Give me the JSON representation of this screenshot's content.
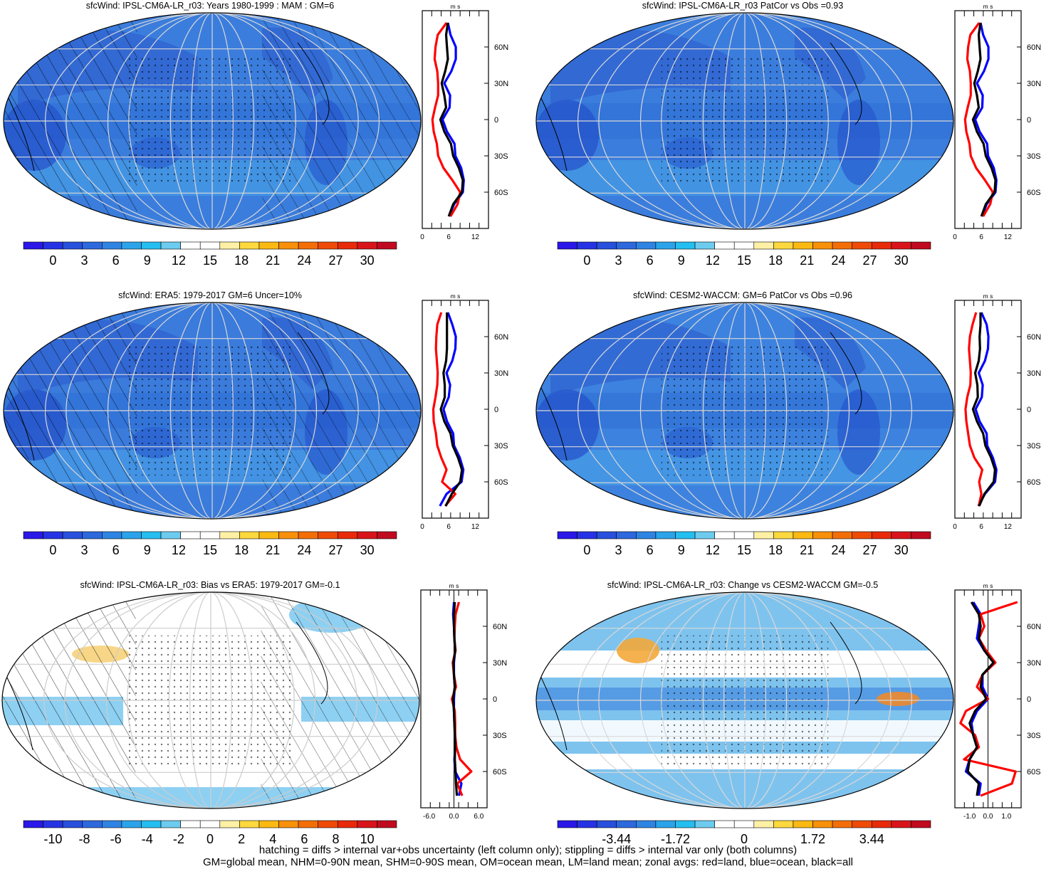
{
  "footer": {
    "line1": "hatching = diffs > internal var+obs uncertainty (left column only); stippling = diffs > internal var only (both columns)",
    "line2": "GM=global mean, NHM=0-90N mean, SHM=0-90S mean, OM=ocean mean, LM=land mean; zonal avgs: red=land, blue=ocean, black=all"
  },
  "colors": {
    "land": "#ff0000",
    "ocean": "#0000ff",
    "all": "#000000"
  },
  "chart_data": [
    {
      "type": "heatmap",
      "title": "sfcWind: IPSL-CM6A-LR_r03: Years 1980-1999 : MAM : GM=6",
      "colorbar_ticks": [
        "0",
        "3",
        "6",
        "9",
        "12",
        "15",
        "18",
        "21",
        "24",
        "27",
        "30"
      ],
      "colorbar_colors": [
        "#2a17e8",
        "#2633e4",
        "#2850dd",
        "#2d68dd",
        "#2f84e3",
        "#2ba3ea",
        "#24bef0",
        "#6dcbef",
        "#ffffff",
        "#ffffff",
        "#fef0a4",
        "#fdd83e",
        "#fcb912",
        "#f99009",
        "#f46e07",
        "#ef4b07",
        "#e82a0b",
        "#d8141a",
        "#c00a1f"
      ],
      "map_fill": "#3b7ddc",
      "hatched": true,
      "zonal": {
        "unit_label": "m s-1",
        "lat_ticks": [
          "60N",
          "30N",
          "0",
          "30S",
          "60S"
        ],
        "lat_values": [
          60,
          30,
          0,
          -30,
          -60
        ],
        "x_ticks": [
          "0",
          "6",
          "12"
        ],
        "xlim": [
          0,
          15
        ],
        "lat": [
          80,
          70,
          60,
          50,
          40,
          30,
          20,
          10,
          0,
          -10,
          -20,
          -30,
          -40,
          -50,
          -60,
          -70,
          -80
        ],
        "series": [
          {
            "name": "land",
            "values": [
              5.5,
              3.5,
              3,
              2.8,
              3.4,
              3.6,
              3.6,
              2.9,
              2.3,
              2.6,
              3.3,
              3.6,
              4.8,
              6.8,
              8.6,
              8,
              6.4
            ]
          },
          {
            "name": "ocean",
            "values": [
              5.8,
              6.4,
              7.6,
              7.6,
              6.6,
              5,
              6.3,
              6.2,
              4.6,
              5.6,
              7.3,
              7.5,
              8.8,
              9.4,
              9.2,
              7.2,
              6.1
            ]
          },
          {
            "name": "all",
            "values": [
              5.8,
              5.4,
              5.6,
              5.8,
              5.2,
              4.4,
              5,
              5.4,
              4.1,
              5,
              6.5,
              7,
              8.3,
              9.2,
              9,
              7,
              6
            ]
          }
        ]
      }
    },
    {
      "type": "heatmap",
      "title": "sfcWind: IPSL-CM6A-LR_r03 PatCor vs Obs =0.93",
      "colorbar_ticks": [
        "0",
        "3",
        "6",
        "9",
        "12",
        "15",
        "18",
        "21",
        "24",
        "27",
        "30"
      ],
      "colorbar_colors": [
        "#2a17e8",
        "#2633e4",
        "#2850dd",
        "#2d68dd",
        "#2f84e3",
        "#2ba3ea",
        "#24bef0",
        "#6dcbef",
        "#ffffff",
        "#ffffff",
        "#fef0a4",
        "#fdd83e",
        "#fcb912",
        "#f99009",
        "#f46e07",
        "#ef4b07",
        "#e82a0b",
        "#d8141a",
        "#c00a1f"
      ],
      "map_fill": "#3b7ddc",
      "hatched": false,
      "zonal": {
        "unit_label": "m s-1",
        "lat_ticks": [
          "60N",
          "30N",
          "0",
          "30S",
          "60S"
        ],
        "lat_values": [
          60,
          30,
          0,
          -30,
          -60
        ],
        "x_ticks": [
          "0",
          "6",
          "12"
        ],
        "xlim": [
          0,
          15
        ],
        "lat": [
          80,
          70,
          60,
          50,
          40,
          30,
          20,
          10,
          0,
          -10,
          -20,
          -30,
          -40,
          -50,
          -60,
          -70,
          -80
        ],
        "series": [
          {
            "name": "land",
            "values": [
              5.5,
              3.5,
              3,
              2.8,
              3.4,
              3.6,
              3.6,
              2.9,
              2.3,
              2.6,
              3.3,
              3.6,
              4.8,
              6.8,
              8.6,
              8,
              6.4
            ]
          },
          {
            "name": "ocean",
            "values": [
              5.8,
              6.4,
              7.6,
              7.6,
              6.6,
              5,
              6.3,
              6.2,
              4.6,
              5.6,
              7.3,
              7.5,
              8.8,
              9.4,
              9.2,
              7.2,
              6.1
            ]
          },
          {
            "name": "all",
            "values": [
              5.8,
              5.4,
              5.6,
              5.8,
              5.2,
              4.4,
              5,
              5.4,
              4.1,
              5,
              6.5,
              7,
              8.3,
              9.2,
              9,
              7,
              6
            ]
          }
        ]
      }
    },
    {
      "type": "heatmap",
      "title": "sfcWind: ERA5: 1979-2017 GM=6 Uncer=10%",
      "colorbar_ticks": [
        "0",
        "3",
        "6",
        "9",
        "12",
        "15",
        "18",
        "21",
        "24",
        "27",
        "30"
      ],
      "colorbar_colors": [
        "#2a17e8",
        "#2633e4",
        "#2850dd",
        "#2d68dd",
        "#2f84e3",
        "#2ba3ea",
        "#24bef0",
        "#6dcbef",
        "#ffffff",
        "#ffffff",
        "#fef0a4",
        "#fdd83e",
        "#fcb912",
        "#f99009",
        "#f46e07",
        "#ef4b07",
        "#e82a0b",
        "#d8141a",
        "#c00a1f"
      ],
      "map_fill": "#3a7bdb",
      "hatched": true,
      "zonal": {
        "unit_label": "m s-1",
        "lat_ticks": [
          "60N",
          "30N",
          "0",
          "30S",
          "60S"
        ],
        "lat_values": [
          60,
          30,
          0,
          -30,
          -60
        ],
        "x_ticks": [
          "0",
          "6",
          "12"
        ],
        "xlim": [
          0,
          15
        ],
        "lat": [
          80,
          70,
          60,
          50,
          40,
          30,
          20,
          10,
          0,
          -10,
          -20,
          -30,
          -40,
          -50,
          -60,
          -70,
          -80
        ],
        "series": [
          {
            "name": "land",
            "values": [
              4.3,
              3.4,
              3.2,
              3.1,
              3.3,
              3.5,
              3.4,
              3,
              2.5,
              2.6,
              3.1,
              3.4,
              4.3,
              5.5,
              4.5,
              7.5,
              5.2
            ]
          },
          {
            "name": "ocean",
            "values": [
              5.8,
              6.8,
              7.6,
              7.5,
              6.8,
              5.5,
              6.3,
              6,
              4.8,
              5.6,
              7,
              7.2,
              8.5,
              9.3,
              8.9,
              5.5,
              4
            ]
          },
          {
            "name": "all",
            "values": [
              5.6,
              5.6,
              5.6,
              5.6,
              5.4,
              4.8,
              5.1,
              5.1,
              4.2,
              5,
              6.4,
              6.9,
              8.1,
              9,
              8.6,
              6.7,
              5.3
            ]
          }
        ]
      }
    },
    {
      "type": "heatmap",
      "title": "sfcWind: CESM2-WACCM: GM=6 PatCor vs Obs =0.96",
      "colorbar_ticks": [
        "0",
        "3",
        "6",
        "9",
        "12",
        "15",
        "18",
        "21",
        "24",
        "27",
        "30"
      ],
      "colorbar_colors": [
        "#2a17e8",
        "#2633e4",
        "#2850dd",
        "#2d68dd",
        "#2f84e3",
        "#2ba3ea",
        "#24bef0",
        "#6dcbef",
        "#ffffff",
        "#ffffff",
        "#fef0a4",
        "#fdd83e",
        "#fcb912",
        "#f99009",
        "#f46e07",
        "#ef4b07",
        "#e82a0b",
        "#d8141a",
        "#c00a1f"
      ],
      "map_fill": "#3d82de",
      "hatched": false,
      "zonal": {
        "unit_label": "m s-1",
        "lat_ticks": [
          "60N",
          "30N",
          "0",
          "30S",
          "60S"
        ],
        "lat_values": [
          60,
          30,
          0,
          -30,
          -60
        ],
        "x_ticks": [
          "0",
          "6",
          "12"
        ],
        "xlim": [
          0,
          15
        ],
        "lat": [
          80,
          70,
          60,
          50,
          40,
          30,
          20,
          10,
          0,
          -10,
          -20,
          -30,
          -40,
          -50,
          -60,
          -70,
          -80
        ],
        "series": [
          {
            "name": "land",
            "values": [
              4.8,
              4,
              3.4,
              3.2,
              3.4,
              3.6,
              3.5,
              2.8,
              2.4,
              2.6,
              3,
              3.4,
              4.4,
              6.2,
              5.5,
              6,
              5.4
            ]
          },
          {
            "name": "ocean",
            "values": [
              6,
              7.2,
              7.6,
              7.5,
              6.8,
              5.4,
              6.3,
              6.1,
              4.7,
              5.6,
              7.2,
              7.3,
              8.6,
              9.4,
              9.1,
              6.8,
              5.3
            ]
          },
          {
            "name": "all",
            "values": [
              5.8,
              5.8,
              5.6,
              5.7,
              5.4,
              4.6,
              5.1,
              5.2,
              4.1,
              5,
              6.4,
              6.9,
              8.2,
              9.1,
              8.8,
              6.7,
              5.5
            ]
          }
        ]
      }
    },
    {
      "type": "heatmap",
      "title": "sfcWind: IPSL-CM6A-LR_r03: Bias vs ERA5: 1979-2017 GM=-0.1",
      "colorbar_ticks": [
        "-10",
        "-8",
        "-6",
        "-4",
        "-2",
        "0",
        "2",
        "4",
        "6",
        "8",
        "10"
      ],
      "colorbar_colors": [
        "#2a17e8",
        "#2633e4",
        "#2850dd",
        "#2d68dd",
        "#2f84e3",
        "#2ba3ea",
        "#24bef0",
        "#6dcbef",
        "#ffffff",
        "#ffffff",
        "#fef0a4",
        "#fdd83e",
        "#fcb912",
        "#f99009",
        "#f46e07",
        "#ef4b07",
        "#e82a0b",
        "#d8141a",
        "#c00a1f"
      ],
      "map_fill": "#ffffff",
      "hatched": true,
      "zonal": {
        "unit_label": "m s-1",
        "lat_ticks": [
          "60N",
          "30N",
          "0",
          "30S",
          "60S"
        ],
        "lat_values": [
          60,
          30,
          0,
          -30,
          -60
        ],
        "x_ticks": [
          "-6.0",
          "0.0",
          "6.0"
        ],
        "xlim": [
          -8,
          8
        ],
        "lat": [
          80,
          70,
          60,
          50,
          40,
          30,
          20,
          10,
          0,
          -10,
          -20,
          -30,
          -40,
          -50,
          -60,
          -70,
          -80
        ],
        "series": [
          {
            "name": "land",
            "values": [
              1.2,
              0.4,
              0.2,
              0.1,
              0.4,
              -0.3,
              0,
              0.5,
              -0.5,
              0.2,
              0.3,
              0.3,
              0.6,
              1.5,
              4.2,
              0.8,
              2
            ]
          },
          {
            "name": "ocean",
            "values": [
              0,
              -0.2,
              0,
              0.1,
              0.3,
              0,
              0,
              0.2,
              0,
              0,
              0.1,
              0.3,
              0.3,
              0.1,
              0.3,
              1.8,
              1.2
            ]
          },
          {
            "name": "all",
            "values": [
              0.2,
              0,
              0,
              0.1,
              0.3,
              -0.1,
              0,
              0.2,
              -0.2,
              0,
              0.1,
              0.2,
              0.3,
              0.2,
              0.4,
              0.5,
              0.7
            ]
          }
        ]
      }
    },
    {
      "type": "heatmap",
      "title": "sfcWind: IPSL-CM6A-LR_r03: Change vs CESM2-WACCM GM=-0.5",
      "colorbar_ticks": [
        "-3.44",
        "-1.72",
        "0",
        "1.72",
        "3.44"
      ],
      "colorbar_colors": [
        "#2a17e8",
        "#2633e4",
        "#2850dd",
        "#2d68dd",
        "#2f84e3",
        "#2ba3ea",
        "#24bef0",
        "#6dcbef",
        "#ffffff",
        "#ffffff",
        "#fef0a4",
        "#fdd83e",
        "#fcb912",
        "#f99009",
        "#f46e07",
        "#ef4b07",
        "#e82a0b",
        "#d8141a",
        "#c00a1f"
      ],
      "map_fill": "#7ec3ee",
      "hatched": false,
      "zonal": {
        "unit_label": "m s-1",
        "lat_ticks": [
          "60N",
          "30N",
          "0",
          "30S",
          "60S"
        ],
        "lat_values": [
          60,
          30,
          0,
          -30,
          -60
        ],
        "x_ticks": [
          "-1.0",
          "0.0",
          "1.0"
        ],
        "xlim": [
          -1.8,
          1.8
        ],
        "lat": [
          80,
          70,
          60,
          50,
          40,
          30,
          20,
          10,
          0,
          -10,
          -20,
          -30,
          -40,
          -50,
          -60,
          -70,
          -80
        ],
        "series": [
          {
            "name": "land",
            "values": [
              1.6,
              -0.4,
              -0.2,
              -0.5,
              -0.1,
              0.4,
              -0.3,
              -0.6,
              0,
              -1.2,
              -1.5,
              -0.7,
              -0.5,
              -1.3,
              1.5,
              1.3,
              -0.4
            ]
          },
          {
            "name": "ocean",
            "values": [
              -0.8,
              -0.4,
              -0.5,
              -0.6,
              -0.2,
              0.4,
              -0.3,
              -0.3,
              0,
              -0.6,
              -0.9,
              -0.8,
              -0.6,
              -1,
              -1.2,
              -0.4,
              -0.5
            ]
          },
          {
            "name": "all",
            "values": [
              -0.9,
              -0.5,
              -0.4,
              -0.5,
              -0.2,
              0.3,
              -0.3,
              -0.4,
              -0.1,
              -0.7,
              -1,
              -0.8,
              -0.6,
              -1,
              -1.1,
              -0.5,
              -0.6
            ]
          }
        ]
      }
    }
  ]
}
